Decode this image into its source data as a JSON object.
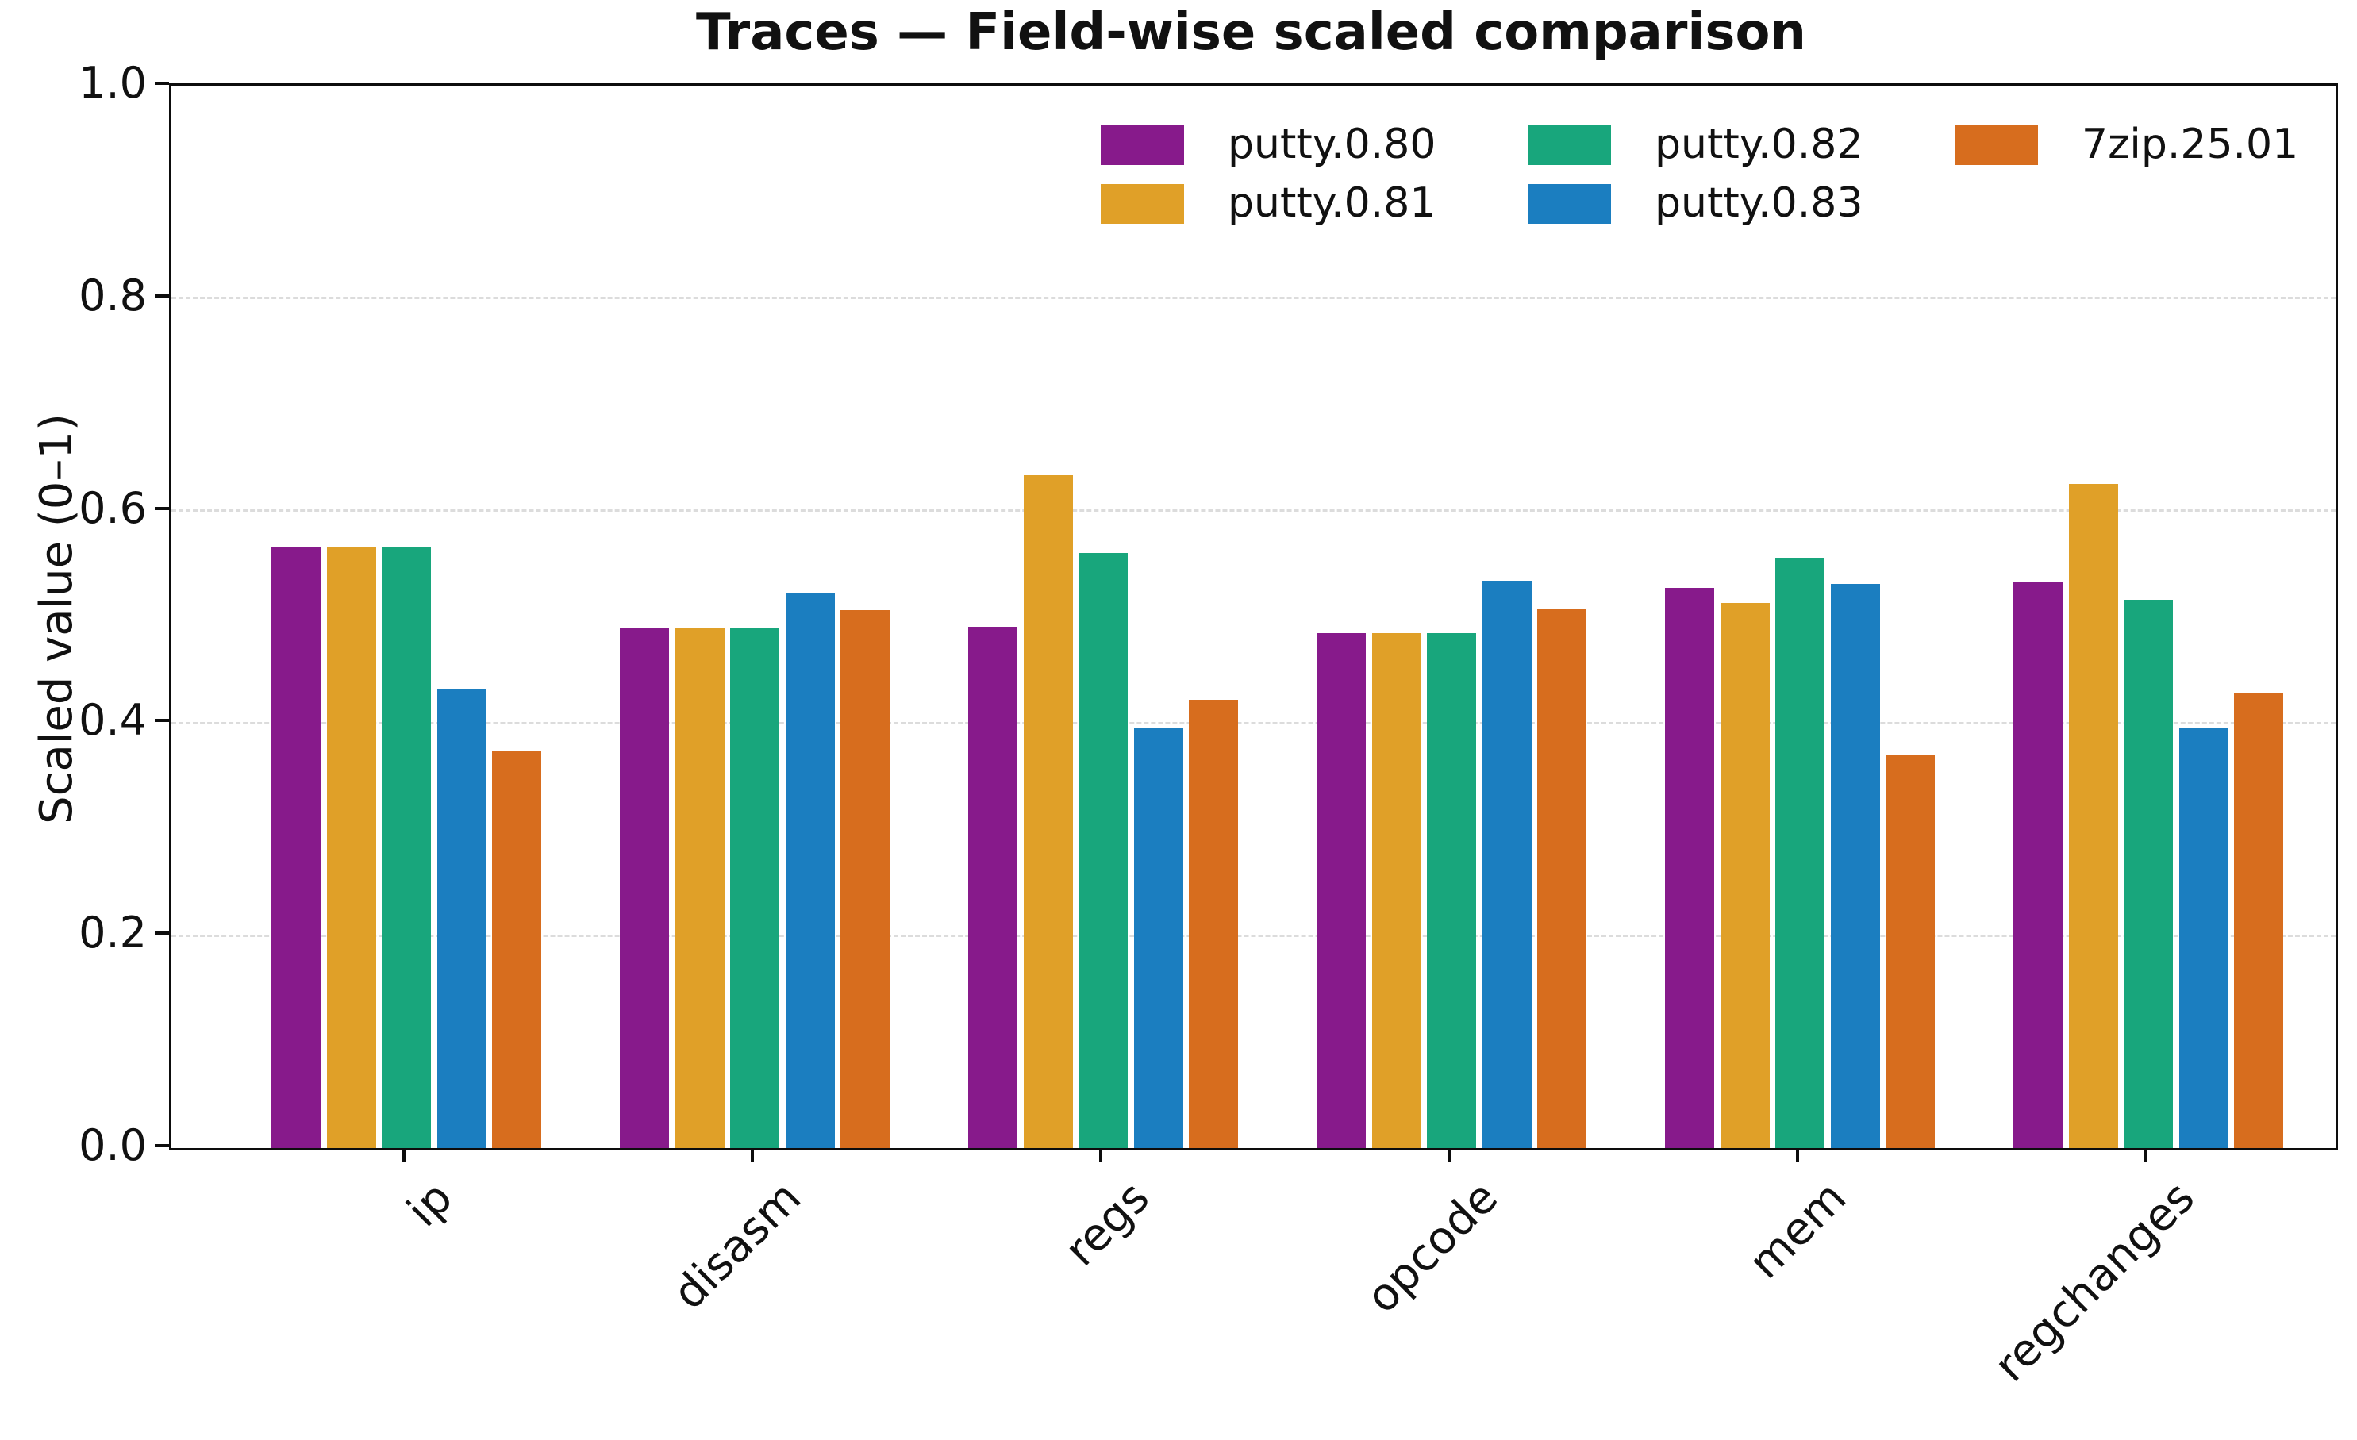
{
  "chart_data": {
    "type": "bar",
    "title": "Traces — Field-wise scaled comparison",
    "ylabel": "Scaled value (0–1)",
    "xlabel": "",
    "categories": [
      "ip",
      "disasm",
      "regs",
      "opcode",
      "mem",
      "regchanges"
    ],
    "series": [
      {
        "name": "putty.0.80",
        "color": "#871A8B",
        "values": [
          0.565,
          0.49,
          0.491,
          0.485,
          0.527,
          0.533
        ]
      },
      {
        "name": "putty.0.81",
        "color": "#E0A028",
        "values": [
          0.565,
          0.49,
          0.633,
          0.485,
          0.513,
          0.625
        ]
      },
      {
        "name": "putty.0.82",
        "color": "#18A67C",
        "values": [
          0.565,
          0.49,
          0.56,
          0.485,
          0.556,
          0.516
        ]
      },
      {
        "name": "putty.0.83",
        "color": "#1B7EC0",
        "values": [
          0.432,
          0.523,
          0.395,
          0.534,
          0.531,
          0.396
        ]
      },
      {
        "name": "7zip.25.01",
        "color": "#D76D1E",
        "values": [
          0.374,
          0.506,
          0.422,
          0.507,
          0.37,
          0.428
        ]
      }
    ],
    "ylim": [
      0,
      1.0
    ],
    "yticks": [
      "0.0",
      "0.2",
      "0.4",
      "0.6",
      "0.8",
      "1.0"
    ],
    "grid": true,
    "grid_style": "horizontal dashed light gray",
    "legend": {
      "position": "upper center, inside plot",
      "columns": 3,
      "entries": [
        "putty.0.80",
        "putty.0.81",
        "putty.0.82",
        "putty.0.83",
        "7zip.25.01"
      ]
    }
  }
}
